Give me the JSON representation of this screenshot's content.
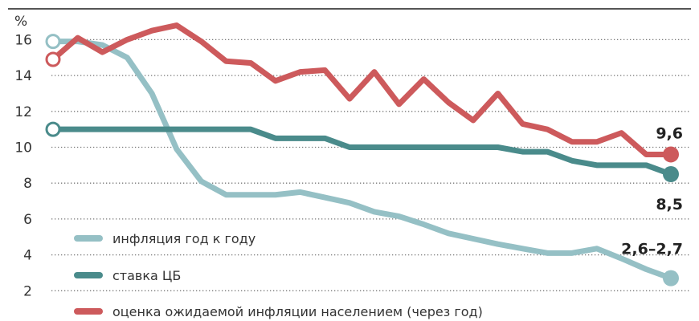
{
  "chart_data": {
    "type": "line",
    "ylabel": "%",
    "ylim": [
      0,
      16
    ],
    "yticks": [
      "0",
      "2",
      "4",
      "6",
      "8",
      "10",
      "12",
      "14",
      "16"
    ],
    "grid": true,
    "legend_position": "bottom-left",
    "x": [
      0,
      1,
      2,
      3,
      4,
      5,
      6,
      7,
      8,
      9,
      10,
      11,
      12,
      13,
      14,
      15,
      16,
      17,
      18,
      19,
      20,
      21,
      22,
      23,
      24,
      25
    ],
    "series": [
      {
        "name": "инфляция год к году",
        "color": "#95c0c5",
        "end_label": "2,6–2,7",
        "values": [
          15.9,
          15.9,
          15.7,
          15.0,
          13.0,
          9.9,
          8.1,
          7.35,
          7.35,
          7.35,
          7.5,
          7.2,
          6.9,
          6.4,
          6.15,
          5.7,
          5.2,
          4.9,
          4.6,
          4.35,
          4.1,
          4.1,
          4.35,
          3.8,
          3.2,
          2.7
        ]
      },
      {
        "name": "ставка ЦБ",
        "color": "#4a8b8b",
        "end_label": "8,5",
        "values": [
          11.0,
          11.0,
          11.0,
          11.0,
          11.0,
          11.0,
          11.0,
          11.0,
          11.0,
          10.5,
          10.5,
          10.5,
          10.0,
          10.0,
          10.0,
          10.0,
          10.0,
          10.0,
          10.0,
          9.75,
          9.75,
          9.25,
          9.0,
          9.0,
          9.0,
          8.5
        ]
      },
      {
        "name": "оценка ожидаемой инфляции населением (через год)",
        "color": "#cd5a5c",
        "end_label": "9,6",
        "values": [
          14.9,
          16.1,
          15.3,
          16.0,
          16.5,
          16.8,
          15.9,
          14.8,
          14.7,
          13.7,
          14.2,
          14.3,
          12.7,
          14.2,
          12.4,
          13.8,
          12.5,
          11.5,
          13.0,
          11.3,
          11.0,
          10.3,
          10.3,
          10.8,
          9.6,
          9.6
        ]
      }
    ]
  }
}
